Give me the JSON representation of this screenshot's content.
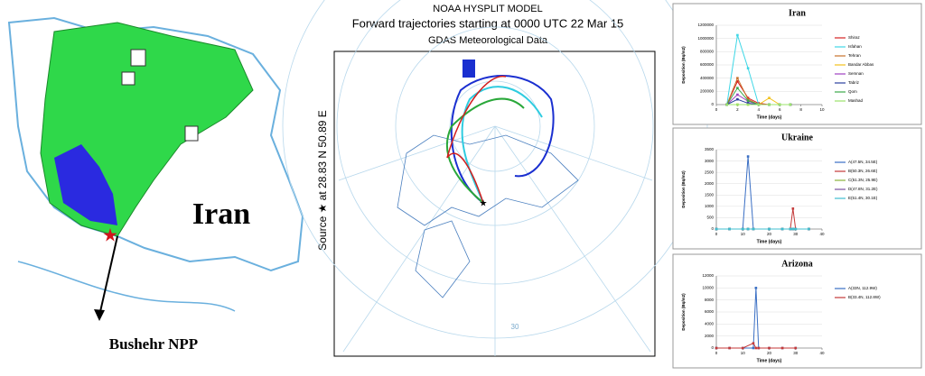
{
  "map": {
    "country_label": "Iran",
    "site_label": "Bushehr NPP"
  },
  "hysplit": {
    "title": "NOAA HYSPLIT MODEL",
    "subtitle": "Forward trajectories starting at 0000 UTC 22 Mar 15",
    "data_source": "GDAS Meteorological Data",
    "source_label": "Source ★ at 28.83 N 50.89 E",
    "latitude_label": "30"
  },
  "chart_data": [
    {
      "type": "line",
      "title": "Iran",
      "x_label": "Time (days)",
      "y_label": "Deposition (Bq/m2)",
      "x": [
        1,
        2,
        3,
        4,
        5,
        6,
        7
      ],
      "xlim": [
        0,
        10
      ],
      "xticks": [
        0,
        2,
        4,
        6,
        8,
        10
      ],
      "ylim": [
        0,
        1200000
      ],
      "yticks": [
        0,
        200000,
        400000,
        600000,
        800000,
        1000000,
        1200000
      ],
      "series": [
        {
          "name": "Shiraz",
          "color": "#d62020",
          "values": [
            0,
            350000,
            100000,
            20000,
            0,
            0,
            0
          ]
        },
        {
          "name": "Isfahan",
          "color": "#3fd7e6",
          "values": [
            0,
            1050000,
            550000,
            0,
            0,
            0,
            0
          ]
        },
        {
          "name": "Tehran",
          "color": "#c8702a",
          "values": [
            0,
            400000,
            80000,
            0,
            0,
            0,
            0
          ]
        },
        {
          "name": "Bandar Abbas",
          "color": "#f2c21b",
          "values": [
            0,
            0,
            0,
            0,
            100000,
            0,
            0
          ]
        },
        {
          "name": "Semnan",
          "color": "#a040c0",
          "values": [
            0,
            150000,
            50000,
            0,
            0,
            0,
            0
          ]
        },
        {
          "name": "Tabriz",
          "color": "#2a3f9e",
          "values": [
            0,
            80000,
            20000,
            0,
            0,
            0,
            0
          ]
        },
        {
          "name": "Qom",
          "color": "#3aa84a",
          "values": [
            0,
            250000,
            60000,
            0,
            0,
            0,
            0
          ]
        },
        {
          "name": "Mashad",
          "color": "#9be36b",
          "values": [
            0,
            0,
            0,
            0,
            0,
            0,
            0
          ]
        }
      ]
    },
    {
      "type": "line",
      "title": "Ukraine",
      "x_label": "Time (days)",
      "y_label": "Deposition (Bq/m2)",
      "x": [
        0,
        5,
        10,
        12,
        14,
        20,
        25,
        28,
        29,
        30,
        35
      ],
      "xlim": [
        0,
        40
      ],
      "xticks": [
        0,
        10,
        20,
        30,
        40
      ],
      "ylim": [
        0,
        3500
      ],
      "yticks": [
        0,
        500,
        1000,
        1500,
        2000,
        2500,
        3000,
        3500
      ],
      "series": [
        {
          "name": "A(47.5N, 34.5E)",
          "color": "#3a6fc4",
          "values": [
            0,
            0,
            0,
            3200,
            0,
            0,
            0,
            0,
            0,
            0,
            0
          ]
        },
        {
          "name": "B(50.3N, 26.6E)",
          "color": "#c43a3a",
          "values": [
            0,
            0,
            0,
            0,
            0,
            0,
            0,
            0,
            900,
            0,
            0
          ]
        },
        {
          "name": "C(51.3N, 25.9E)",
          "color": "#8ab23c",
          "values": [
            0,
            0,
            0,
            0,
            0,
            0,
            0,
            0,
            0,
            0,
            0
          ]
        },
        {
          "name": "D(47.8N, 31.2E)",
          "color": "#7a4fa0",
          "values": [
            0,
            0,
            0,
            0,
            0,
            0,
            0,
            0,
            0,
            0,
            0
          ]
        },
        {
          "name": "E(51.4N, 30.1E)",
          "color": "#3fbfd0",
          "values": [
            0,
            0,
            0,
            0,
            0,
            0,
            0,
            0,
            0,
            0,
            0
          ]
        }
      ]
    },
    {
      "type": "line",
      "title": "Arizona",
      "x_label": "Time (days)",
      "y_label": "Deposition (Bq/m2)",
      "x": [
        0,
        5,
        10,
        14,
        15,
        16,
        20,
        25,
        30
      ],
      "xlim": [
        0,
        40
      ],
      "xticks": [
        0,
        10,
        20,
        30,
        40
      ],
      "ylim": [
        0,
        12000
      ],
      "yticks": [
        0,
        2000,
        4000,
        6000,
        8000,
        10000,
        12000
      ],
      "series": [
        {
          "name": "A(33N, 112.9W)",
          "color": "#3a6fc4",
          "values": [
            0,
            0,
            0,
            0,
            10000,
            0,
            0,
            0,
            0
          ]
        },
        {
          "name": "B(33.4N, 112.8W)",
          "color": "#c43a3a",
          "values": [
            0,
            0,
            0,
            800,
            0,
            0,
            0,
            0,
            0
          ]
        }
      ]
    }
  ]
}
